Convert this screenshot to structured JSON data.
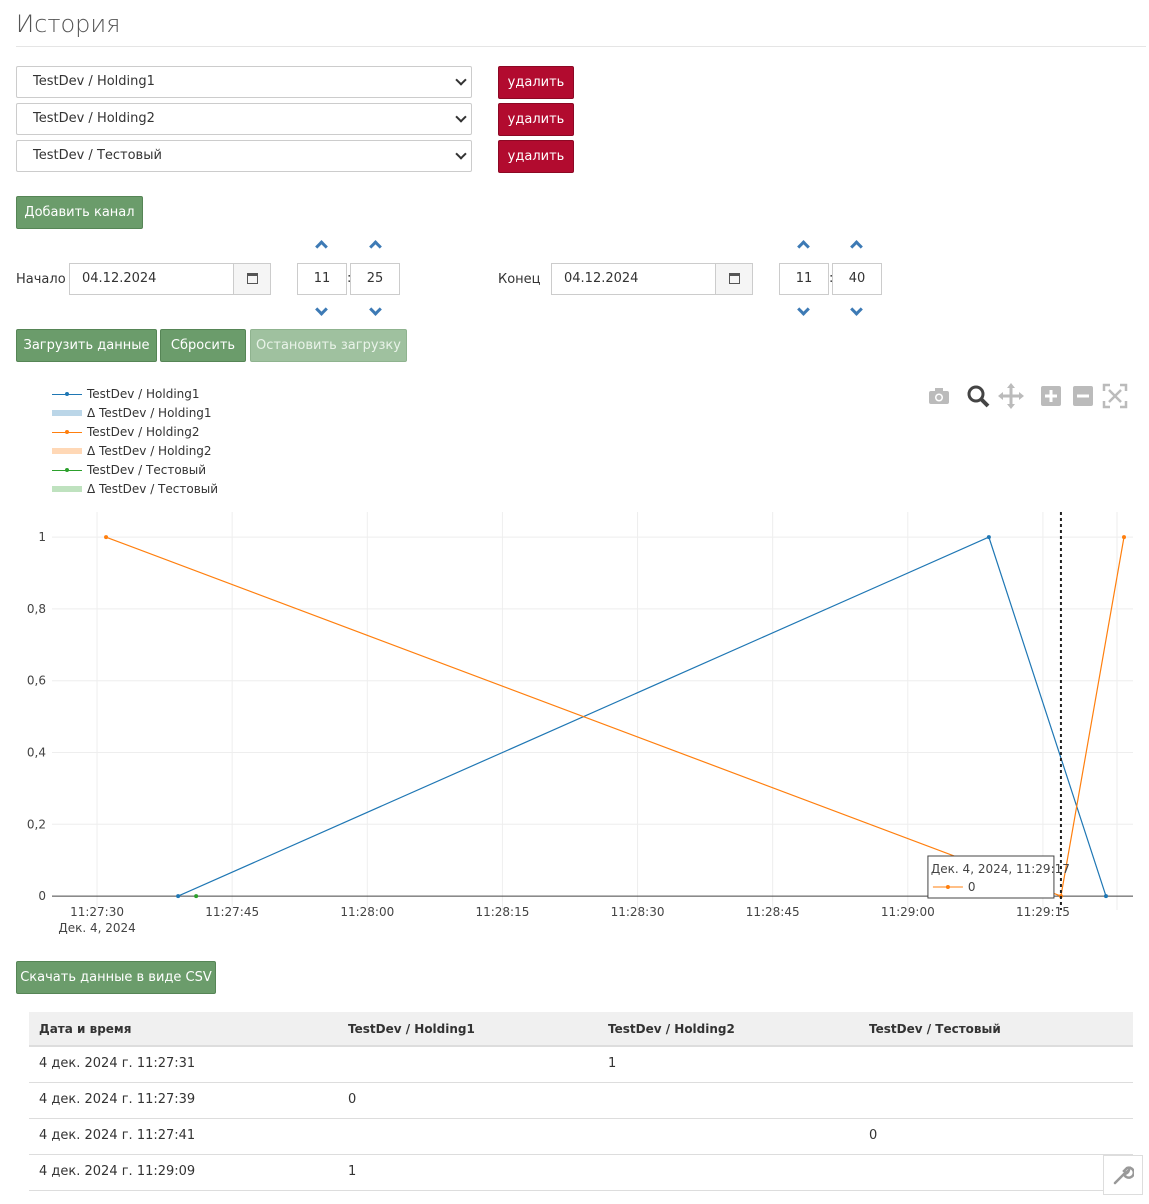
{
  "page": {
    "title": "История"
  },
  "channels": [
    {
      "value": "TestDev / Holding1",
      "remove_label": "удалить"
    },
    {
      "value": "TestDev / Holding2",
      "remove_label": "удалить"
    },
    {
      "value": "TestDev / Тестовый",
      "remove_label": "удалить"
    }
  ],
  "add_channel_label": "Добавить канал",
  "range": {
    "start_label": "Начало",
    "start_date": "04.12.2024",
    "start_hour": "11",
    "start_minute": "25",
    "end_label": "Конец",
    "end_date": "04.12.2024",
    "end_hour": "11",
    "end_minute": "40",
    "separator": ":"
  },
  "actions": {
    "load_label": "Загрузить данные",
    "reset_label": "Сбросить",
    "stop_label": "Остановить загрузку"
  },
  "legend": [
    {
      "name": "TestDev / Holding1",
      "color": "#1f77b4",
      "kind": "line"
    },
    {
      "name": "Δ TestDev / Holding1",
      "color": "#1f77b4",
      "kind": "band"
    },
    {
      "name": "TestDev / Holding2",
      "color": "#ff7f0e",
      "kind": "line"
    },
    {
      "name": "Δ TestDev / Holding2",
      "color": "#ff7f0e",
      "kind": "band"
    },
    {
      "name": "TestDev / Тестовый",
      "color": "#2ca02c",
      "kind": "line"
    },
    {
      "name": "Δ TestDev / Тестовый",
      "color": "#2ca02c",
      "kind": "band"
    }
  ],
  "modebar": [
    "camera-icon",
    "zoom-icon",
    "pan-icon",
    "zoom-in-icon",
    "zoom-out-icon",
    "autoscale-icon"
  ],
  "chart_data": {
    "type": "line",
    "x_unit": "time",
    "xlim": [
      "11:27:25",
      "11:29:25"
    ],
    "ylim": [
      -0.1,
      1.07
    ],
    "grid": true,
    "x_ticks": [
      "11:27:30",
      "11:27:45",
      "11:28:00",
      "11:28:15",
      "11:28:30",
      "11:28:45",
      "11:29:00",
      "11:29:15"
    ],
    "x_date_label": "Дек. 4, 2024",
    "y_ticks": [
      {
        "value": 0,
        "label": "0"
      },
      {
        "value": 0.2,
        "label": "0,2"
      },
      {
        "value": 0.4,
        "label": "0,4"
      },
      {
        "value": 0.6,
        "label": "0,6"
      },
      {
        "value": 0.8,
        "label": "0,8"
      },
      {
        "value": 1,
        "label": "1"
      }
    ],
    "series": [
      {
        "name": "TestDev / Holding1",
        "color": "#1f77b4",
        "points": [
          [
            "11:27:39",
            0
          ],
          [
            "11:29:09",
            1
          ],
          [
            "11:29:22",
            0
          ]
        ]
      },
      {
        "name": "TestDev / Holding2",
        "color": "#ff7f0e",
        "points": [
          [
            "11:27:31",
            1
          ],
          [
            "11:29:17",
            0
          ],
          [
            "11:29:24",
            1
          ]
        ]
      },
      {
        "name": "TestDev / Тестовый",
        "color": "#2ca02c",
        "points": [
          [
            "11:27:41",
            0
          ]
        ]
      }
    ],
    "hover": {
      "x": "11:29:17",
      "title": "Дек. 4, 2024, 11:29:17",
      "value": "0",
      "color": "#ff7f0e"
    }
  },
  "csv_label": "Скачать данные в виде CSV",
  "table": {
    "headers": [
      "Дата и время",
      "TestDev / Holding1",
      "TestDev / Holding2",
      "TestDev / Тестовый"
    ],
    "rows": [
      [
        "4 дек. 2024 г. 11:27:31",
        "",
        "1",
        ""
      ],
      [
        "4 дек. 2024 г. 11:27:39",
        "0",
        "",
        ""
      ],
      [
        "4 дек. 2024 г. 11:27:41",
        "",
        "",
        "0"
      ],
      [
        "4 дек. 2024 г. 11:29:09",
        "1",
        "",
        ""
      ]
    ]
  }
}
